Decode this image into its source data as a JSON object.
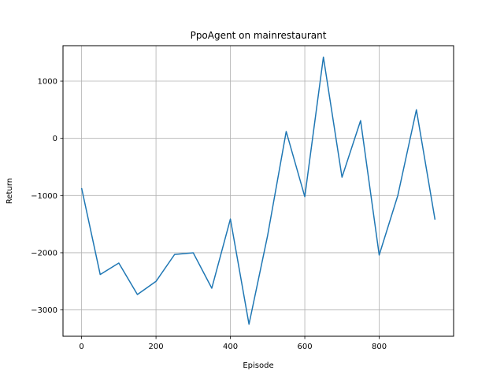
{
  "chart_data": {
    "type": "line",
    "title": "PpoAgent on mainrestaurant",
    "xlabel": "Episode",
    "ylabel": "Return",
    "xlim": [
      -50,
      1000
    ],
    "ylim": [
      -3460,
      1620
    ],
    "grid": true,
    "x_ticks": [
      0,
      200,
      400,
      600,
      800
    ],
    "x_tick_labels": [
      "0",
      "200",
      "400",
      "600",
      "800"
    ],
    "y_ticks": [
      1000,
      0,
      -1000,
      -2000,
      -3000
    ],
    "y_tick_labels": [
      "1000",
      "0",
      "−1000",
      "−2000",
      "−3000"
    ],
    "series": [
      {
        "color": "#1f77b4",
        "x": [
          0,
          50,
          100,
          150,
          200,
          250,
          300,
          350,
          400,
          450,
          500,
          550,
          600,
          650,
          700,
          750,
          800,
          850,
          900,
          950
        ],
        "y": [
          -870,
          -2380,
          -2180,
          -2730,
          -2500,
          -2030,
          -2000,
          -2620,
          -1410,
          -3250,
          -1700,
          120,
          -1020,
          1420,
          -680,
          310,
          -2040,
          -1000,
          500,
          -1420
        ]
      }
    ]
  }
}
